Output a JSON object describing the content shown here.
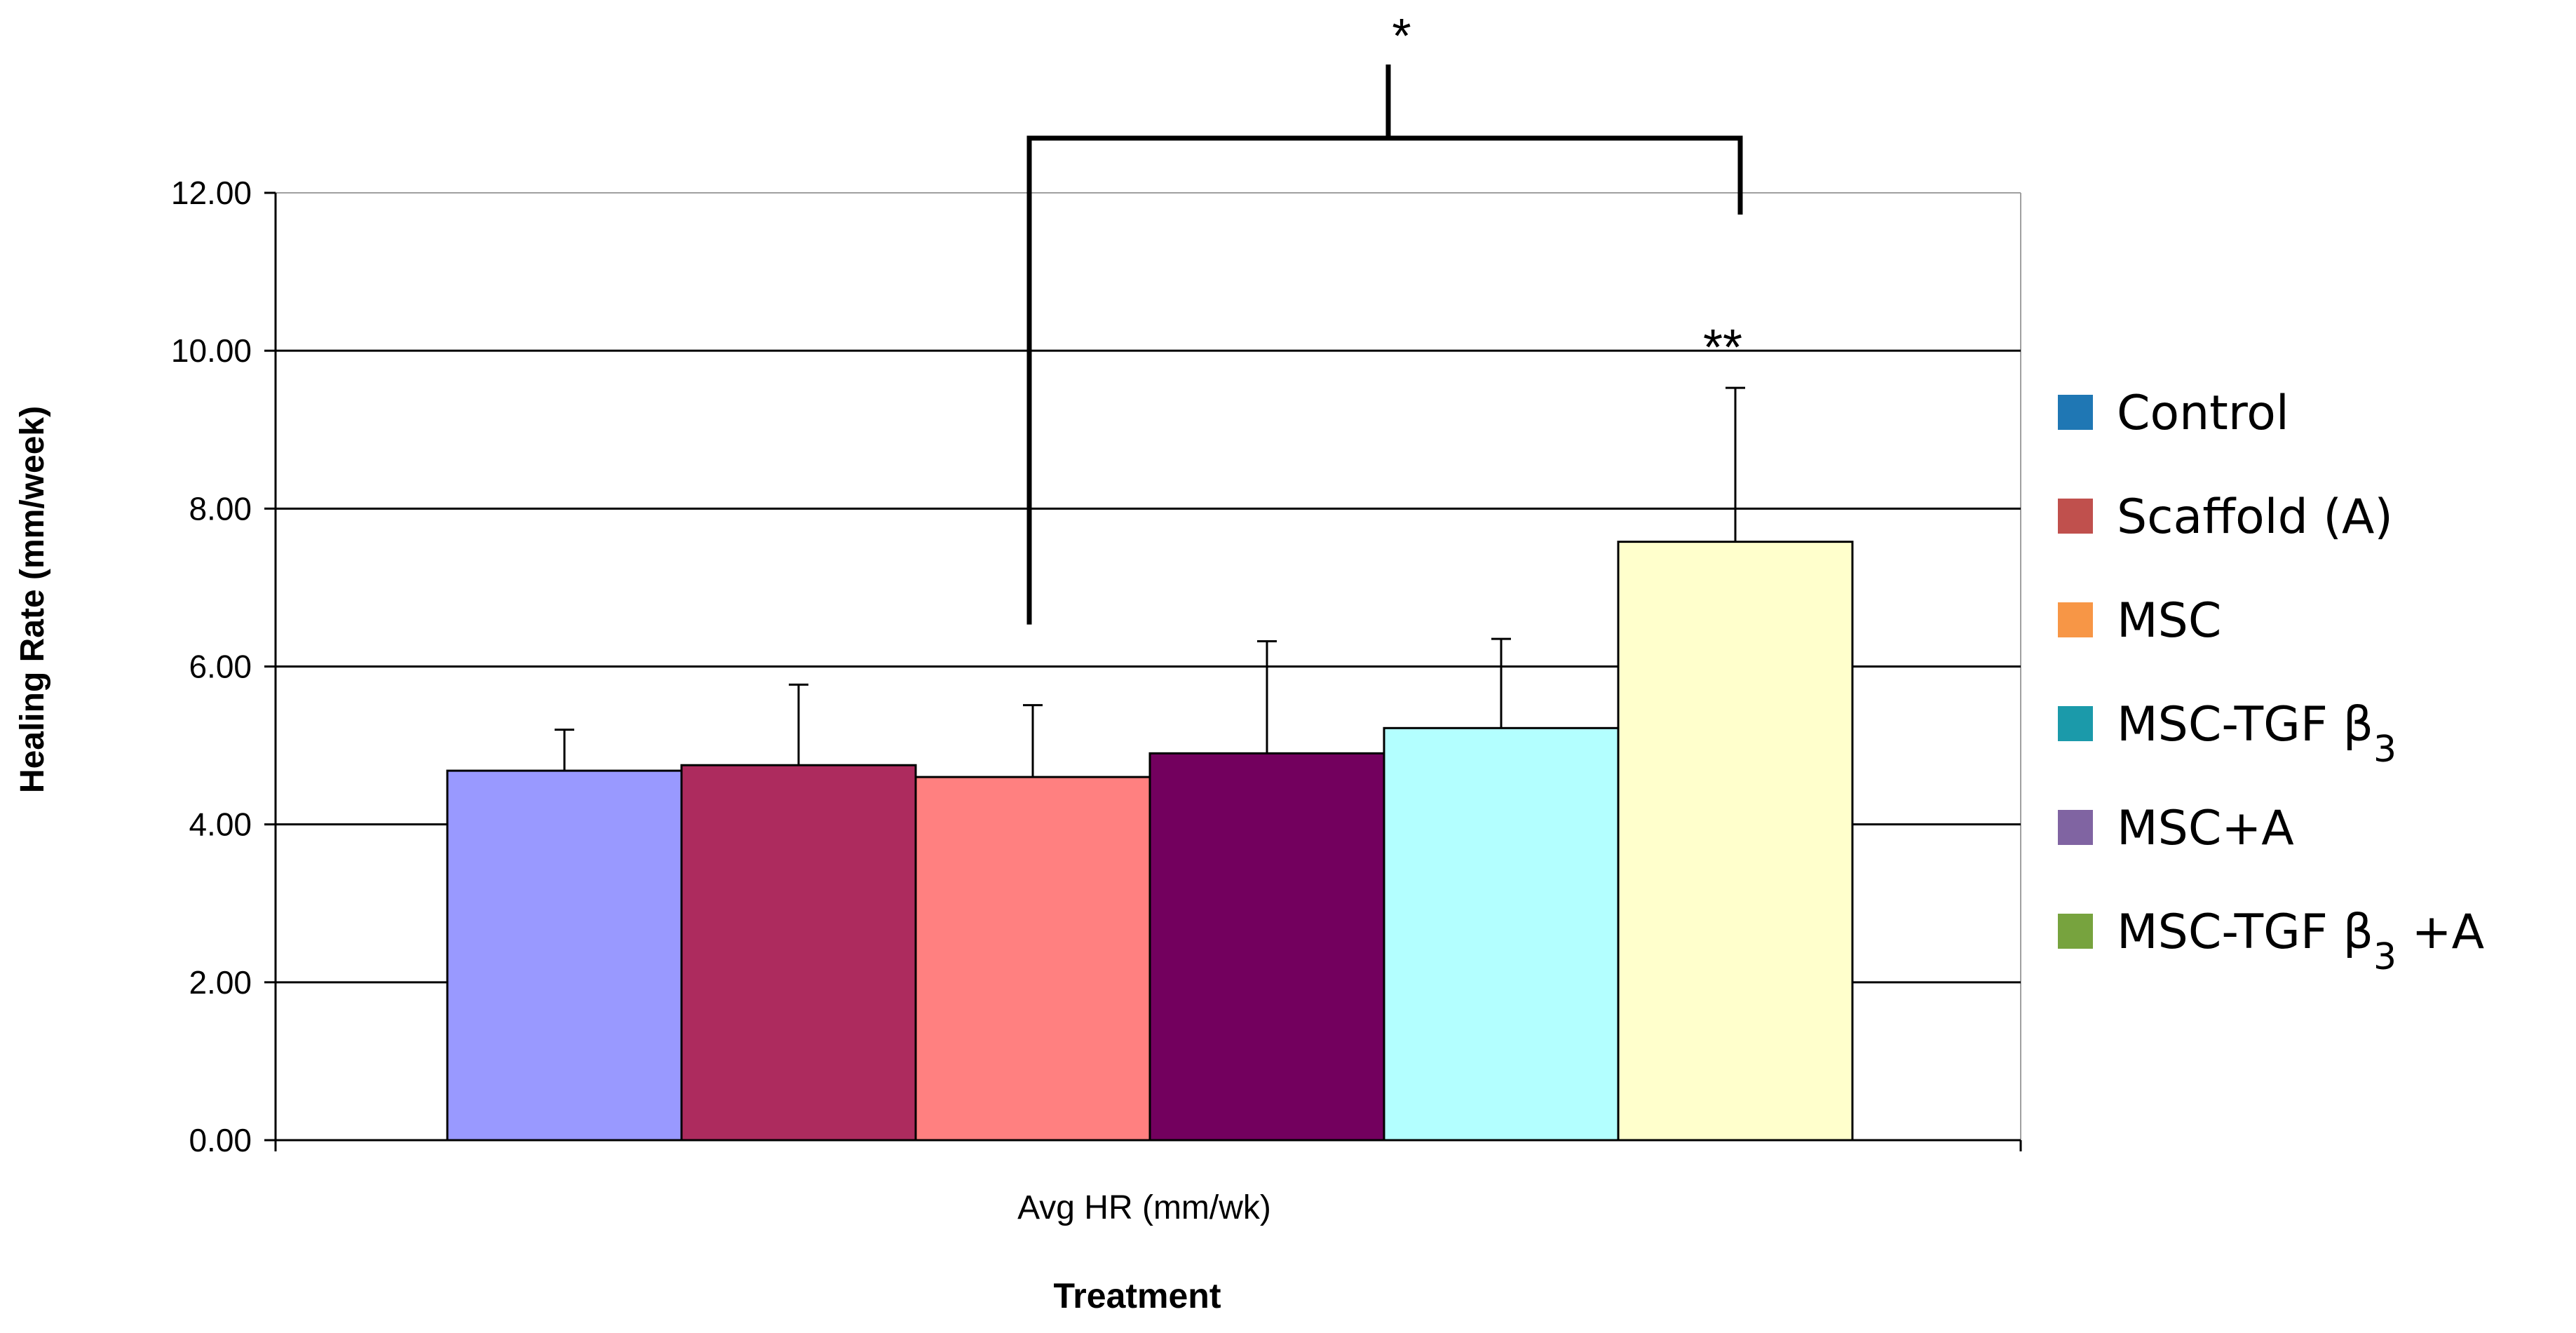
{
  "chart_data": {
    "type": "bar",
    "categories": [
      "Avg HR (mm/wk)"
    ],
    "xlabel": "Treatment",
    "ylabel": "Healing Rate (mm/week)",
    "ylim": [
      0,
      12
    ],
    "yticks": [
      "0.00",
      "2.00",
      "4.00",
      "6.00",
      "8.00",
      "10.00",
      "12.00"
    ],
    "grid": true,
    "legend_position": "right",
    "series": [
      {
        "name": "Control",
        "label_main": "Control",
        "label_sub": "",
        "label_suffix": "",
        "value": 4.68,
        "error": 0.52,
        "bar_color": "#9999FF",
        "legend_color": "#1F77B4"
      },
      {
        "name": "Scaffold (A)",
        "label_main": "Scaffold (A)",
        "label_sub": "",
        "label_suffix": "",
        "value": 4.75,
        "error": 1.02,
        "bar_color": "#AD2B5E",
        "legend_color": "#C0504D"
      },
      {
        "name": "MSC",
        "label_main": "MSC",
        "label_sub": "",
        "label_suffix": "",
        "value": 4.6,
        "error": 0.91,
        "bar_color": "#FF8080",
        "legend_color": "#F79646"
      },
      {
        "name": "MSC-TGF β3",
        "label_main": "MSC-TGF β",
        "label_sub": "3",
        "label_suffix": "",
        "value": 4.9,
        "error": 1.42,
        "bar_color": "#73005E",
        "legend_color": "#1B9AAA"
      },
      {
        "name": "MSC+A",
        "label_main": "MSC+A",
        "label_sub": "",
        "label_suffix": "",
        "value": 5.22,
        "error": 1.13,
        "bar_color": "#B3FFFF",
        "legend_color": "#8064A2"
      },
      {
        "name": "MSC-TGF β3 +A",
        "label_main": "MSC-TGF β",
        "label_sub": "3",
        "label_suffix": " +A",
        "value": 7.58,
        "error": 1.95,
        "bar_color": "#FFFFCC",
        "legend_color": "#77A33E"
      }
    ],
    "annotations": {
      "bracket_star": "*",
      "bar_star": "**"
    }
  }
}
